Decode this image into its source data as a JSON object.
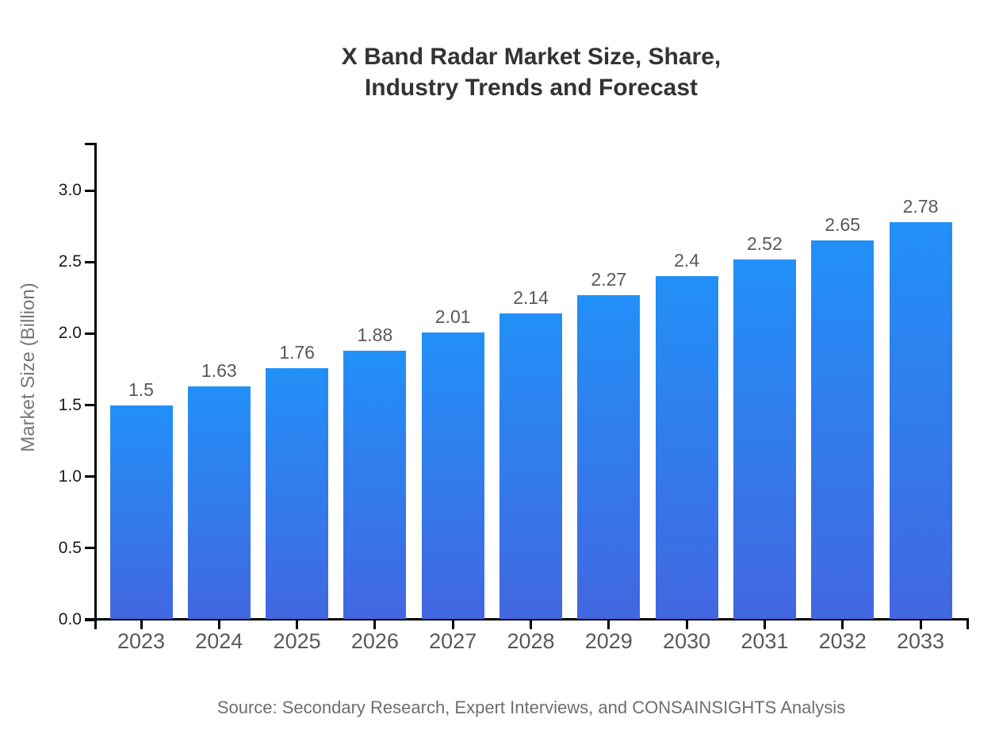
{
  "title": {
    "line1": "X Band Radar Market Size, Share,",
    "line2": "Industry Trends and Forecast"
  },
  "source_note": "Source: Secondary Research, Expert Interviews, and CONSAINSIGHTS Analysis",
  "chart_data": {
    "type": "bar",
    "title": "X Band Radar Market Size, Share, Industry Trends and Forecast",
    "xlabel": "",
    "ylabel": "Market Size (Billion)",
    "categories": [
      "2023",
      "2024",
      "2025",
      "2026",
      "2027",
      "2028",
      "2029",
      "2030",
      "2031",
      "2032",
      "2033"
    ],
    "values": [
      1.5,
      1.63,
      1.76,
      1.88,
      2.01,
      2.14,
      2.27,
      2.4,
      2.52,
      2.65,
      2.78
    ],
    "bar_labels": [
      "1.5",
      "1.63",
      "1.76",
      "1.88",
      "2.01",
      "2.14",
      "2.27",
      "2.4",
      "2.52",
      "2.65",
      "2.78"
    ],
    "y_ticks": [
      0.0,
      0.5,
      1.0,
      1.5,
      2.0,
      2.5,
      3.0
    ],
    "y_tick_labels": [
      "0.0",
      "0.5",
      "1.0",
      "1.5",
      "2.0",
      "2.5",
      "3.0"
    ],
    "ylim": [
      0,
      3.33
    ],
    "grid": false,
    "legend_position": "none",
    "bar_color_top": "#2290f8",
    "bar_color_bottom": "#4267e0",
    "axis_color": "#000000"
  }
}
